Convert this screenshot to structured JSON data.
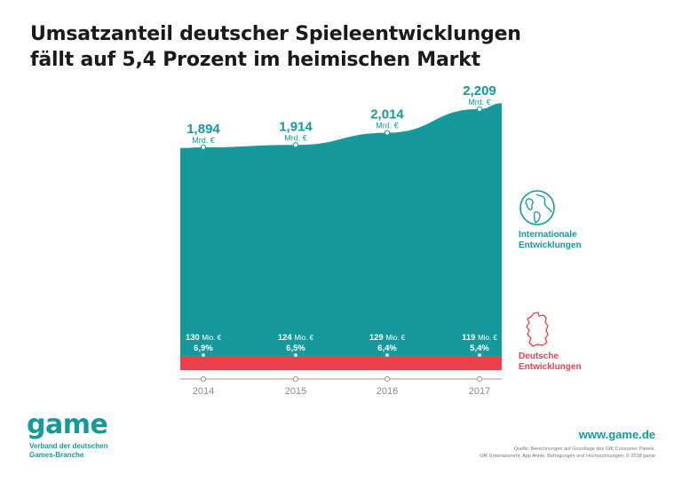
{
  "title": {
    "line1": "Umsatzanteil deutscher Spieleentwicklungen",
    "line2": "fällt auf 5,4 Prozent im heimischen Markt"
  },
  "colors": {
    "international": "#16999b",
    "deutsch": "#e8434c",
    "axis": "#9a9a9a",
    "text": "#1a1a1a"
  },
  "legend": {
    "international": {
      "line1": "Internationale",
      "line2": "Entwicklungen",
      "icon": "globe-icon"
    },
    "deutsch": {
      "line1": "Deutsche",
      "line2": "Entwicklungen",
      "icon": "germany-map-icon"
    }
  },
  "chart_data": {
    "type": "area",
    "categories": [
      "2014",
      "2015",
      "2016",
      "2017"
    ],
    "series": [
      {
        "name": "Internationale Entwicklungen",
        "values": [
          1.894,
          1.914,
          2.014,
          2.209
        ],
        "labels": [
          "1,894",
          "1,914",
          "2,014",
          "2,209"
        ],
        "unit": "Mrd. €"
      },
      {
        "name": "Deutsche Entwicklungen",
        "values": [
          130,
          124,
          129,
          119
        ],
        "labels": [
          "130",
          "124",
          "129",
          "119"
        ],
        "unit": "Mio. €",
        "shares": [
          "6,9%",
          "6,5%",
          "6,4%",
          "5,4%"
        ]
      }
    ]
  },
  "footer": {
    "logo": "game",
    "tagline1": "Verband der deutschen",
    "tagline2": "Games-Branche",
    "url": "www.game.de",
    "source1": "Quelle: Berechnungen auf Grundlage des GfK Consumer Panels,",
    "source2": "GfK Entertainment, App Annie, Befragungen und Hochrechnungen; © 2018 game"
  }
}
